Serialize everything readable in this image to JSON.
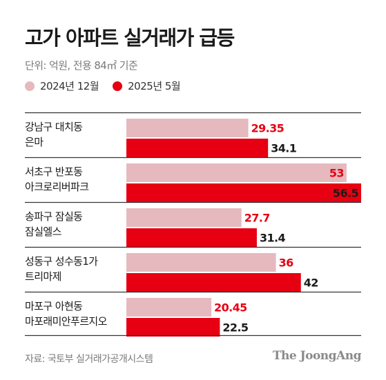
{
  "title": "고가 아파트 실거래가 급등",
  "subtitle": "단위: 억원, 전용 84㎡ 기준",
  "source": "자료: 국토부 실거래가공개시스템",
  "brand": "The JoongAng",
  "colors": {
    "series_2024": "#e6b9be",
    "series_2025": "#e60012",
    "value_2024": "#e60012",
    "value_2025": "#1a1a1a",
    "divider": "#333333"
  },
  "chart_data": {
    "type": "bar",
    "orientation": "horizontal",
    "categories": [
      [
        "강남구 대치동",
        "은마"
      ],
      [
        "서초구 반포동",
        "아크로리버파크"
      ],
      [
        "송파구 잠실동",
        "잠실엘스"
      ],
      [
        "성동구 성수동1가",
        "트리마제"
      ],
      [
        "마포구 아현동",
        "마포래미안푸르지오"
      ]
    ],
    "series": [
      {
        "name": "2024년 12월",
        "values": [
          29.35,
          53,
          27.7,
          36,
          20.45
        ]
      },
      {
        "name": "2025년 5월",
        "values": [
          34.1,
          56.5,
          31.4,
          42,
          22.5
        ]
      }
    ],
    "value_labels": [
      [
        "29.35",
        "53",
        "27.7",
        "36",
        "20.45"
      ],
      [
        "34.1",
        "56.5",
        "31.4",
        "42",
        "22.5"
      ]
    ],
    "xlim": [
      0,
      56.5
    ],
    "legend": "top-left",
    "grid": false
  }
}
